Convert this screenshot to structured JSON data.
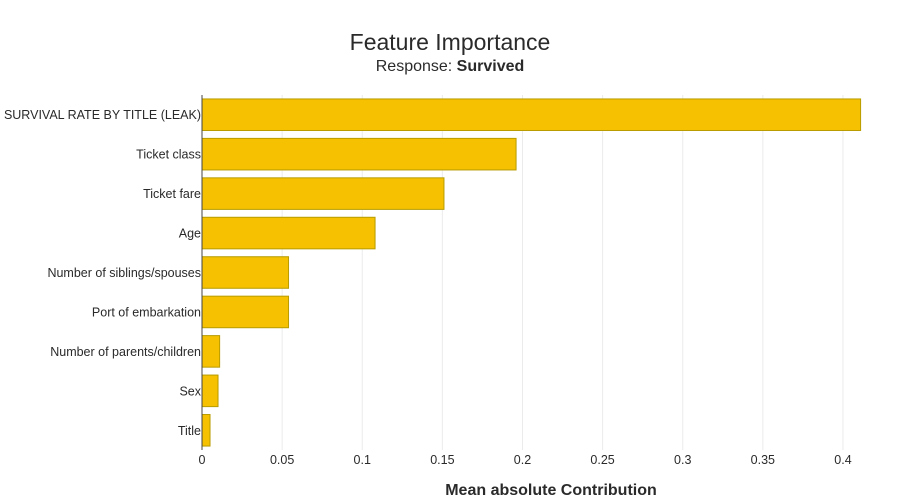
{
  "chart_data": {
    "type": "bar",
    "orientation": "horizontal",
    "title": "Feature Importance",
    "subtitle_prefix": "Response: ",
    "subtitle_bold": "Survived",
    "xlabel": "Mean absolute Contribution",
    "ylabel": "",
    "categories": [
      "SURVIVAL RATE BY TITLE (LEAK)",
      "Ticket class",
      "Ticket fare",
      "Age",
      "Number of siblings/spouses",
      "Port of embarkation",
      "Number of parents/children",
      "Sex",
      "Title"
    ],
    "values": [
      0.411,
      0.196,
      0.151,
      0.108,
      0.054,
      0.054,
      0.011,
      0.01,
      0.005
    ],
    "xlim": [
      0,
      0.415
    ],
    "xticks": [
      0,
      0.05,
      0.1,
      0.15,
      0.2,
      0.25,
      0.3,
      0.35,
      0.4
    ],
    "xtick_labels": [
      "0",
      "0.05",
      "0.1",
      "0.15",
      "0.2",
      "0.25",
      "0.3",
      "0.35",
      "0.4"
    ],
    "grid": true,
    "bar_color": "#f5c100"
  }
}
